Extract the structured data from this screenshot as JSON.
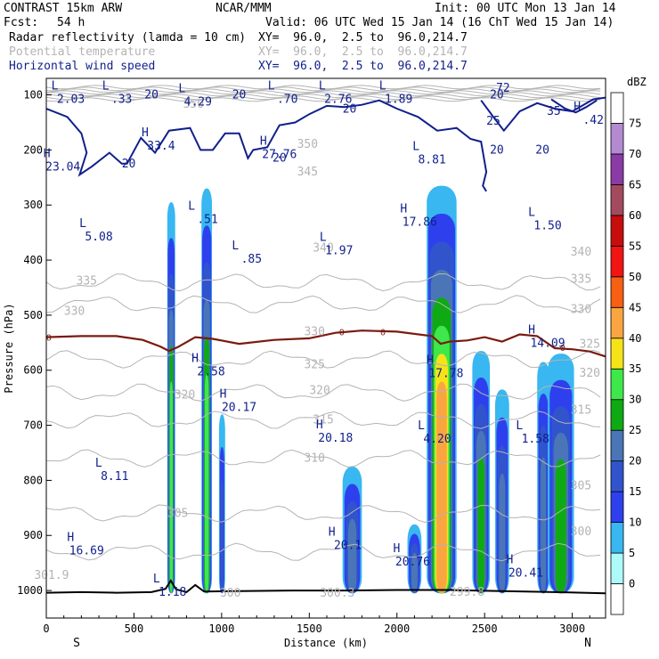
{
  "header": {
    "model": "CONTRAST 15km ARW",
    "org": "NCAR/MMM",
    "init": "Init: 00 UTC Mon 13 Jan 14",
    "fcst_label": "Fcst:",
    "fcst_value": "54 h",
    "valid": "Valid: 06 UTC Wed 15 Jan 14 (16 ChT Wed 15 Jan 14)",
    "fields": [
      {
        "name": "Radar reflectivity (lamda = 10 cm)",
        "xy": "XY=  96.0,  2.5 to  96.0,214.7",
        "color": "#000000"
      },
      {
        "name": "Potential temperature",
        "xy": "XY=  96.0,  2.5 to  96.0,214.7",
        "color": "#b4b4b4"
      },
      {
        "name": "Horizontal wind speed",
        "xy": "XY=  96.0,  2.5 to  96.0,214.7",
        "color": "#101f8c"
      }
    ]
  },
  "chart_data": {
    "type": "heatmap",
    "title": "",
    "xlabel": "Distance (km)",
    "ylabel": "Pressure (hPa)",
    "xlim": [
      0,
      3190
    ],
    "ylim": [
      1050,
      70
    ],
    "xticks": [
      0,
      500,
      1000,
      1500,
      2000,
      2500,
      3000
    ],
    "xtick_labels": [
      "0",
      "500",
      "1000",
      "1500",
      "2000",
      "2500",
      "3000"
    ],
    "yticks": [
      100,
      200,
      300,
      400,
      500,
      600,
      700,
      800,
      900,
      1000
    ],
    "ytick_labels": [
      "100",
      "200",
      "300",
      "400",
      "500",
      "600",
      "700",
      "800",
      "900",
      "1000"
    ],
    "x_end_labels": {
      "left": "S",
      "right": "N"
    },
    "colorbar": {
      "unit": "dBZ",
      "levels": [
        "0",
        "5",
        "10",
        "15",
        "20",
        "25",
        "30",
        "35",
        "40",
        "45",
        "50",
        "55",
        "60",
        "65",
        "70",
        "75"
      ],
      "colors": [
        "#ffffff",
        "#aefaf9",
        "#38b7f1",
        "#2e40ee",
        "#3154cc",
        "#4a76b7",
        "#0faa13",
        "#3ee84a",
        "#f5e317",
        "#f9a541",
        "#f75f13",
        "#f21313",
        "#c80d0d",
        "#a44a5e",
        "#8b3ba5",
        "#b38ad1",
        "#ffffff"
      ]
    },
    "reflectivity_cells": [
      {
        "x": [
          690,
          735
        ],
        "p": [
          295,
          1005
        ],
        "max_dbz": 30
      },
      {
        "x": [
          885,
          945
        ],
        "p": [
          270,
          1005
        ],
        "max_dbz": 30
      },
      {
        "x": [
          985,
          1020
        ],
        "p": [
          680,
          1005
        ],
        "max_dbz": 15
      },
      {
        "x": [
          1690,
          1800
        ],
        "p": [
          775,
          1005
        ],
        "max_dbz": 20
      },
      {
        "x": [
          2060,
          2140
        ],
        "p": [
          880,
          1005
        ],
        "max_dbz": 20
      },
      {
        "x": [
          2170,
          2340
        ],
        "p": [
          265,
          1005
        ],
        "max_dbz": 40
      },
      {
        "x": [
          2430,
          2530
        ],
        "p": [
          565,
          1005
        ],
        "max_dbz": 25
      },
      {
        "x": [
          2560,
          2640
        ],
        "p": [
          635,
          1005
        ],
        "max_dbz": 20
      },
      {
        "x": [
          2800,
          2870
        ],
        "p": [
          585,
          1005
        ],
        "max_dbz": 20
      },
      {
        "x": [
          2860,
          3010
        ],
        "p": [
          570,
          1005
        ],
        "max_dbz": 25
      }
    ],
    "freezing_level_label": "0",
    "freezing_level": {
      "x": [
        0,
        200,
        400,
        550,
        650,
        700,
        750,
        850,
        950,
        1100,
        1300,
        1500,
        1650,
        1800,
        2000,
        2200,
        2250,
        2300,
        2400,
        2500,
        2600,
        2700,
        2800,
        2900,
        3000,
        3100,
        3190
      ],
      "p": [
        540,
        538,
        538,
        545,
        557,
        565,
        558,
        540,
        543,
        552,
        545,
        542,
        532,
        528,
        530,
        538,
        552,
        548,
        546,
        540,
        548,
        535,
        538,
        560,
        562,
        566,
        575
      ]
    },
    "terrain": {
      "x": [
        0,
        200,
        400,
        600,
        680,
        710,
        740,
        800,
        850,
        900,
        1100,
        1400,
        1700,
        2000,
        2300,
        2600,
        2900,
        3190
      ],
      "p": [
        1004,
        1003,
        1004,
        1003,
        997,
        982,
        998,
        1003,
        990,
        1002,
        1001,
        1000,
        1000,
        999,
        999,
        1001,
        1003,
        1005
      ]
    },
    "theta_contours": [
      {
        "level": "335",
        "p": 440
      },
      {
        "level": "330",
        "p": 480
      },
      {
        "level": "325",
        "p": 580
      },
      {
        "level": "320",
        "p": 640
      },
      {
        "level": "315",
        "p": 690
      },
      {
        "level": "310",
        "p": 760
      },
      {
        "level": "305",
        "p": 860
      },
      {
        "level": "300",
        "p": 930
      }
    ],
    "theta_labels": [
      {
        "text": "340",
        "x": 1580,
        "p": 378
      },
      {
        "text": "340",
        "x": 3050,
        "p": 385
      },
      {
        "text": "335",
        "x": 230,
        "p": 438
      },
      {
        "text": "335",
        "x": 3050,
        "p": 435
      },
      {
        "text": "330",
        "x": 160,
        "p": 493
      },
      {
        "text": "330",
        "x": 3050,
        "p": 490
      },
      {
        "text": "330",
        "x": 1530,
        "p": 530
      },
      {
        "text": "325",
        "x": 1530,
        "p": 590
      },
      {
        "text": "325",
        "x": 3100,
        "p": 553
      },
      {
        "text": "320",
        "x": 3100,
        "p": 605
      },
      {
        "text": "320",
        "x": 1560,
        "p": 637
      },
      {
        "text": "320",
        "x": 790,
        "p": 645
      },
      {
        "text": "315",
        "x": 1580,
        "p": 690
      },
      {
        "text": "315",
        "x": 3050,
        "p": 672
      },
      {
        "text": "310",
        "x": 1530,
        "p": 760
      },
      {
        "text": "305",
        "x": 750,
        "p": 860
      },
      {
        "text": "305",
        "x": 3050,
        "p": 810
      },
      {
        "text": "300",
        "x": 3050,
        "p": 893
      },
      {
        "text": "300.3",
        "x": 1660,
        "p": 1005
      },
      {
        "text": "299.8",
        "x": 2400,
        "p": 1003
      },
      {
        "text": "301.9",
        "x": 30,
        "p": 972
      },
      {
        "text": "300",
        "x": 1050,
        "p": 1005
      },
      {
        "text": "350",
        "x": 840,
        "p": 117
      },
      {
        "text": "350",
        "x": 1490,
        "p": 190
      },
      {
        "text": "345",
        "x": 1490,
        "p": 240
      }
    ],
    "wind_contours": [
      {
        "level": "20",
        "x": [
          0,
          120,
          200,
          230,
          190,
          260,
          360,
          430,
          460,
          540,
          620,
          700,
          820,
          880,
          950,
          1020,
          1100,
          1150,
          1180,
          1260,
          1330,
          1420,
          1500,
          1600,
          1700,
          1800,
          1900,
          2000,
          2120,
          2230,
          2340,
          2420,
          2480,
          2510,
          2490,
          2510
        ],
        "p": [
          125,
          140,
          170,
          205,
          245,
          230,
          205,
          225,
          225,
          178,
          205,
          165,
          160,
          200,
          200,
          170,
          170,
          215,
          200,
          195,
          155,
          150,
          135,
          120,
          122,
          118,
          110,
          125,
          140,
          165,
          160,
          180,
          185,
          240,
          265,
          275
        ]
      },
      {
        "level": "25",
        "x": [
          2480,
          2550,
          2610,
          2700,
          2800,
          2900,
          3000,
          3120,
          3190
        ],
        "p": [
          110,
          140,
          165,
          130,
          115,
          125,
          130,
          108,
          105
        ]
      },
      {
        "level": "35",
        "x": [
          2880,
          2960,
          3020,
          3080,
          3140
        ],
        "p": [
          108,
          125,
          132,
          122,
          110
        ]
      }
    ],
    "wind_labels": [
      {
        "text": "20",
        "x": 600,
        "p": 100
      },
      {
        "text": "20",
        "x": 1100,
        "p": 100
      },
      {
        "text": "20",
        "x": 1730,
        "p": 126
      },
      {
        "text": "20",
        "x": 2570,
        "p": 100
      },
      {
        "text": "20",
        "x": 470,
        "p": 225
      },
      {
        "text": "20",
        "x": 1330,
        "p": 215
      },
      {
        "text": "20",
        "x": 2570,
        "p": 200
      },
      {
        "text": "20",
        "x": 2830,
        "p": 200
      },
      {
        "text": "25",
        "x": 2550,
        "p": 148
      },
      {
        "text": "35",
        "x": 2895,
        "p": 130
      },
      {
        "text": "72",
        "x": 2605,
        "p": 88
      }
    ],
    "extrema": [
      {
        "type": "L",
        "value": "2.03",
        "x": 140,
        "p": 95
      },
      {
        "type": "L",
        "value": ".33",
        "x": 430,
        "p": 95
      },
      {
        "type": "L",
        "value": "4.29",
        "x": 865,
        "p": 100
      },
      {
        "type": "L",
        "value": ".70",
        "x": 1375,
        "p": 95
      },
      {
        "type": "L",
        "value": "2.76",
        "x": 1665,
        "p": 95
      },
      {
        "type": "L",
        "value": "1.89",
        "x": 2010,
        "p": 95
      },
      {
        "type": "H",
        "value": "33.4",
        "x": 655,
        "p": 180
      },
      {
        "type": "H",
        "value": "27.76",
        "x": 1330,
        "p": 195
      },
      {
        "type": "H",
        "value": "23.04",
        "x": 95,
        "p": 218
      },
      {
        "type": "L",
        "value": "8.81",
        "x": 2200,
        "p": 205
      },
      {
        "type": "H",
        "value": ".42",
        "x": 3120,
        "p": 133
      },
      {
        "type": "L",
        "value": ".51",
        "x": 920,
        "p": 313
      },
      {
        "type": "L",
        "value": "5.08",
        "x": 300,
        "p": 345
      },
      {
        "type": "L",
        "value": ".85",
        "x": 1170,
        "p": 385
      },
      {
        "type": "L",
        "value": "1.97",
        "x": 1670,
        "p": 370
      },
      {
        "type": "H",
        "value": "17.86",
        "x": 2130,
        "p": 318
      },
      {
        "type": "L",
        "value": "1.50",
        "x": 2860,
        "p": 325
      },
      {
        "type": "H",
        "value": "14.09",
        "x": 2860,
        "p": 538
      },
      {
        "type": "H",
        "value": "2.58",
        "x": 940,
        "p": 590
      },
      {
        "type": "H",
        "value": "17.78",
        "x": 2280,
        "p": 593
      },
      {
        "type": "H",
        "value": "20.17",
        "x": 1100,
        "p": 655
      },
      {
        "type": "H",
        "value": "20.18",
        "x": 1650,
        "p": 710
      },
      {
        "type": "L",
        "value": "4.20",
        "x": 2230,
        "p": 712
      },
      {
        "type": "L",
        "value": "1.58",
        "x": 2790,
        "p": 712
      },
      {
        "type": "L",
        "value": "8.11",
        "x": 390,
        "p": 780
      },
      {
        "type": "H",
        "value": "16.69",
        "x": 230,
        "p": 915
      },
      {
        "type": "H",
        "value": "20.1",
        "x": 1720,
        "p": 905
      },
      {
        "type": "H",
        "value": "20.76",
        "x": 2090,
        "p": 935
      },
      {
        "type": "H",
        "value": "20.41",
        "x": 2735,
        "p": 955
      },
      {
        "type": "L",
        "value": "1.18",
        "x": 720,
        "p": 990
      }
    ]
  }
}
